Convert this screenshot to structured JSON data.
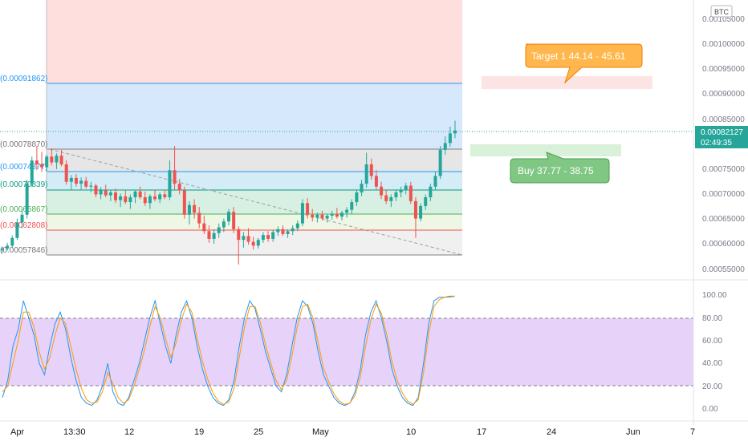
{
  "currency_badge": "BTC",
  "price_axis": {
    "ticks": [
      "0.00105000",
      "0.00100000",
      "0.00095000",
      "0.00090000",
      "0.00085000",
      "0.00075000",
      "0.00070000",
      "0.00065000",
      "0.00060000",
      "0.00055000"
    ],
    "last_price": "0.00082127",
    "countdown": "02:49:35"
  },
  "fib_labels": [
    "(0.00091862)",
    "(0.00078870)",
    "(0.00074377)",
    "(0.00070839)",
    "(0.00065867)",
    "(0.00062808)",
    "(0.00057846)"
  ],
  "annotations": {
    "target": "Target 1 44.14 - 45.61",
    "buy": "Buy 37.77  - 38.75"
  },
  "stoch_axis": [
    "100.00",
    "80.00",
    "60.00",
    "40.00",
    "20.00",
    "0.00"
  ],
  "time_axis": [
    "Apr",
    "13:30",
    "12",
    "19",
    "25",
    "May",
    "10",
    "17",
    "24",
    "Jun",
    "7"
  ],
  "colors": {
    "up": "#26a69a",
    "down": "#ef5350",
    "k_line": "#2196f3",
    "d_line": "#ff9800",
    "stoch_band": "#e1c8f7",
    "last_price_bg": "#26a69a"
  },
  "chart_data": [
    {
      "type": "candlestick",
      "series": [
        {
          "name": "",
          "values": [
            [
              0.000575,
              0.000582,
              0.00057,
              0.000578
            ],
            [
              0.000578,
              0.00059,
              0.000574,
              0.000584
            ],
            [
              0.000584,
              0.000605,
              0.00058,
              0.0006
            ],
            [
              0.0006,
              0.00064,
              0.000596,
              0.000632
            ],
            [
              0.000632,
              0.00066,
              0.00062,
              0.000648
            ],
            [
              0.000648,
              0.00072,
              0.00064,
              0.000712
            ],
            [
              0.000712,
              0.000768,
              0.000706,
              0.00076
            ],
            [
              0.00076,
              0.00079,
              0.00074,
              0.000752
            ],
            [
              0.000752,
              0.000778,
              0.000736,
              0.000746
            ],
            [
              0.000746,
              0.000772,
              0.000738,
              0.000768
            ],
            [
              0.000768,
              0.000785,
              0.00075,
              0.000756
            ],
            [
              0.000756,
              0.000775,
              0.000742,
              0.00077
            ],
            [
              0.00077,
              0.000782,
              0.000748,
              0.000752
            ],
            [
              0.000752,
              0.00076,
              0.00071,
              0.000716
            ],
            [
              0.000716,
              0.00073,
              0.0007,
              0.000724
            ],
            [
              0.000724,
              0.000732,
              0.000706,
              0.000712
            ],
            [
              0.000712,
              0.000725,
              0.0007,
              0.000718
            ],
            [
              0.000718,
              0.000726,
              0.000702,
              0.000706
            ],
            [
              0.000706,
              0.000716,
              0.000694,
              0.000708
            ],
            [
              0.000708,
              0.000712,
              0.000684,
              0.00069
            ],
            [
              0.00069,
              0.000705,
              0.00068,
              0.000698
            ],
            [
              0.000698,
              0.00071,
              0.000684,
              0.000688
            ],
            [
              0.000688,
              0.0007,
              0.000676,
              0.000694
            ],
            [
              0.000694,
              0.000702,
              0.000672,
              0.000678
            ],
            [
              0.000678,
              0.000692,
              0.000664,
              0.000686
            ],
            [
              0.000686,
              0.000698,
              0.00067,
              0.000674
            ],
            [
              0.000674,
              0.00069,
              0.00066,
              0.000684
            ],
            [
              0.000684,
              0.0007,
              0.000672,
              0.000696
            ],
            [
              0.000696,
              0.000706,
              0.00068,
              0.000684
            ],
            [
              0.000684,
              0.000696,
              0.000666,
              0.000672
            ],
            [
              0.000672,
              0.00069,
              0.00066,
              0.000686
            ],
            [
              0.000686,
              0.0007,
              0.000676,
              0.00068
            ],
            [
              0.00068,
              0.000694,
              0.000672,
              0.00069
            ],
            [
              0.00069,
              0.0007,
              0.00068,
              0.000684
            ],
            [
              0.000684,
              0.00076,
              0.000678,
              0.00074
            ],
            [
              0.00074,
              0.00079,
              0.0007,
              0.000712
            ],
            [
              0.000712,
              0.000722,
              0.00069,
              0.000698
            ],
            [
              0.000698,
              0.000706,
              0.00064,
              0.000648
            ],
            [
              0.000648,
              0.000676,
              0.000628,
              0.000668
            ],
            [
              0.000668,
              0.00068,
              0.00064,
              0.000652
            ],
            [
              0.000652,
              0.000664,
              0.00062,
              0.00063
            ],
            [
              0.00063,
              0.000646,
              0.000608,
              0.000614
            ],
            [
              0.000614,
              0.000626,
              0.00059,
              0.000598
            ],
            [
              0.000598,
              0.000618,
              0.000588,
              0.00061
            ],
            [
              0.00061,
              0.00063,
              0.0006,
              0.000622
            ],
            [
              0.000622,
              0.00064,
              0.000612,
              0.000634
            ],
            [
              0.000634,
              0.00066,
              0.000626,
              0.000654
            ],
            [
              0.000654,
              0.000664,
              0.00061,
              0.000618
            ],
            [
              0.000618,
              0.000624,
              0.000545,
              0.000596
            ],
            [
              0.000596,
              0.000612,
              0.00058,
              0.000604
            ],
            [
              0.000604,
              0.00062,
              0.000586,
              0.000592
            ],
            [
              0.000592,
              0.000602,
              0.000576,
              0.000584
            ],
            [
              0.000584,
              0.0006,
              0.000578,
              0.000596
            ],
            [
              0.000596,
              0.000612,
              0.00059,
              0.000606
            ],
            [
              0.000606,
              0.000614,
              0.000592,
              0.000598
            ],
            [
              0.000598,
              0.000616,
              0.000592,
              0.000612
            ],
            [
              0.000612,
              0.000624,
              0.000604,
              0.000618
            ],
            [
              0.000618,
              0.000626,
              0.000604,
              0.000608
            ],
            [
              0.000608,
              0.000618,
              0.0006,
              0.000614
            ],
            [
              0.000614,
              0.000626,
              0.000606,
              0.00062
            ],
            [
              0.00062,
              0.000636,
              0.000614,
              0.00063
            ],
            [
              0.00063,
              0.00068,
              0.000624,
              0.000672
            ],
            [
              0.000672,
              0.000682,
              0.00064,
              0.000648
            ],
            [
              0.000648,
              0.00066,
              0.000634,
              0.000642
            ],
            [
              0.000642,
              0.000652,
              0.000632,
              0.000648
            ],
            [
              0.000648,
              0.000656,
              0.000636,
              0.00064
            ],
            [
              0.00064,
              0.00065,
              0.000632,
              0.000646
            ],
            [
              0.000646,
              0.000656,
              0.000638,
              0.00065
            ],
            [
              0.00065,
              0.000662,
              0.00064,
              0.000644
            ],
            [
              0.000644,
              0.000656,
              0.000636,
              0.000652
            ],
            [
              0.000652,
              0.000664,
              0.000642,
              0.000658
            ],
            [
              0.000658,
              0.00068,
              0.00065,
              0.000674
            ],
            [
              0.000674,
              0.0007,
              0.000666,
              0.000694
            ],
            [
              0.000694,
              0.00072,
              0.000686,
              0.000712
            ],
            [
              0.000712,
              0.000776,
              0.000704,
              0.000752
            ],
            [
              0.000752,
              0.000764,
              0.00072,
              0.000728
            ],
            [
              0.000728,
              0.00074,
              0.0007,
              0.000706
            ],
            [
              0.000706,
              0.000716,
              0.00068,
              0.000688
            ],
            [
              0.000688,
              0.0007,
              0.00067,
              0.000676
            ],
            [
              0.000676,
              0.00069,
              0.000664,
              0.000684
            ],
            [
              0.000684,
              0.0007,
              0.000676,
              0.000694
            ],
            [
              0.000694,
              0.000706,
              0.000684,
              0.0007
            ],
            [
              0.0007,
              0.000714,
              0.00069,
              0.000708
            ],
            [
              0.000708,
              0.000716,
              0.00067,
              0.000676
            ],
            [
              0.000676,
              0.000684,
              0.0006,
              0.00064
            ],
            [
              0.00064,
              0.000672,
              0.000634,
              0.000666
            ],
            [
              0.000666,
              0.00069,
              0.000658,
              0.000684
            ],
            [
              0.000684,
              0.000712,
              0.000676,
              0.000706
            ],
            [
              0.000706,
              0.000736,
              0.000698,
              0.000728
            ],
            [
              0.000728,
              0.00079,
              0.000722,
              0.000782
            ],
            [
              0.000782,
              0.00081,
              0.000772,
              0.000796
            ],
            [
              0.000796,
              0.00083,
              0.000788,
              0.000816
            ],
            [
              0.000816,
              0.000842,
              0.000806,
              0.000822
            ]
          ]
        }
      ],
      "price_range": [
        0.00053,
        0.00108
      ]
    },
    {
      "type": "line",
      "series": [
        {
          "name": "",
          "values": [
            10,
            25,
            55,
            70,
            95,
            80,
            65,
            40,
            30,
            55,
            75,
            85,
            70,
            45,
            25,
            10,
            5,
            3,
            8,
            20,
            40,
            15,
            5,
            3,
            10,
            25,
            40,
            60,
            80,
            95,
            75,
            55,
            40,
            65,
            85,
            95,
            80,
            55,
            35,
            20,
            10,
            5,
            3,
            8,
            25,
            55,
            80,
            95,
            88,
            70,
            50,
            35,
            20,
            15,
            30,
            55,
            80,
            95,
            90,
            75,
            50,
            30,
            20,
            10,
            5,
            3,
            5,
            15,
            35,
            65,
            85,
            95,
            80,
            60,
            35,
            20,
            10,
            5,
            3,
            10,
            40,
            75,
            95,
            98,
            98,
            99,
            99
          ]
        },
        {
          "name": "",
          "values": [
            15,
            20,
            40,
            60,
            85,
            85,
            72,
            50,
            35,
            45,
            65,
            80,
            75,
            55,
            35,
            18,
            8,
            5,
            6,
            15,
            32,
            22,
            10,
            5,
            8,
            20,
            35,
            52,
            72,
            90,
            80,
            62,
            45,
            58,
            78,
            92,
            85,
            62,
            42,
            26,
            14,
            7,
            4,
            6,
            18,
            45,
            72,
            90,
            90,
            76,
            56,
            40,
            25,
            17,
            25,
            46,
            72,
            90,
            92,
            80,
            58,
            36,
            24,
            13,
            7,
            4,
            5,
            12,
            28,
            55,
            78,
            92,
            84,
            66,
            42,
            25,
            14,
            7,
            4,
            8,
            32,
            66,
            90,
            96,
            98,
            98,
            99
          ]
        }
      ],
      "ylim": [
        0,
        100
      ]
    }
  ]
}
